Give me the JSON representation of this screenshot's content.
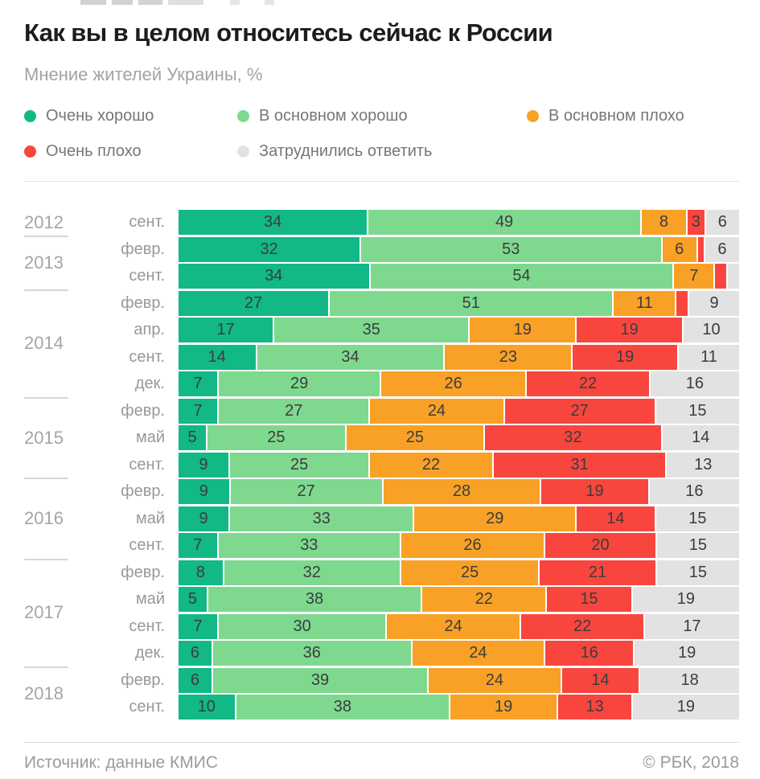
{
  "header": {
    "title": "Как вы в целом относитесь сейчас к России",
    "subtitle": "Мнение жителей Украины, %"
  },
  "legend": [
    {
      "label": "Очень хорошо",
      "color": "#12b886"
    },
    {
      "label": "В основном хорошо",
      "color": "#7ed98f"
    },
    {
      "label": "В основном плохо",
      "color": "#f9a126"
    },
    {
      "label": "Очень плохо",
      "color": "#f8463e"
    },
    {
      "label": "Затруднились ответить",
      "color": "#e2e2e2"
    }
  ],
  "chart_data": {
    "type": "bar",
    "stacked": true,
    "orientation": "horizontal",
    "title": "Как вы в целом относитесь сейчас к России",
    "subtitle": "Мнение жителей Украины, %",
    "unit": "%",
    "series_names": [
      "Очень хорошо",
      "В основном хорошо",
      "В основном плохо",
      "Очень плохо",
      "Затруднились ответить"
    ],
    "colors": [
      "#12b886",
      "#7ed98f",
      "#f9a126",
      "#f8463e",
      "#e2e2e2"
    ],
    "label_min_value": 3,
    "legend_position": "top",
    "groups": [
      {
        "year": "2012",
        "rows": [
          {
            "month": "сент.",
            "values": [
              34,
              49,
              8,
              3,
              6
            ]
          }
        ]
      },
      {
        "year": "2013",
        "rows": [
          {
            "month": "февр.",
            "values": [
              32,
              53,
              6,
              1,
              6
            ]
          },
          {
            "month": "сент.",
            "values": [
              34,
              54,
              7,
              2,
              2
            ]
          }
        ]
      },
      {
        "year": "2014",
        "rows": [
          {
            "month": "февр.",
            "values": [
              27,
              51,
              11,
              2,
              9
            ]
          },
          {
            "month": "апр.",
            "values": [
              17,
              35,
              19,
              19,
              10
            ]
          },
          {
            "month": "сент.",
            "values": [
              14,
              34,
              23,
              19,
              11
            ]
          },
          {
            "month": "дек.",
            "values": [
              7,
              29,
              26,
              22,
              16
            ]
          }
        ]
      },
      {
        "year": "2015",
        "rows": [
          {
            "month": "февр.",
            "values": [
              7,
              27,
              24,
              27,
              15
            ]
          },
          {
            "month": "май",
            "values": [
              5,
              25,
              25,
              32,
              14
            ]
          },
          {
            "month": "сент.",
            "values": [
              9,
              25,
              22,
              31,
              13
            ]
          }
        ]
      },
      {
        "year": "2016",
        "rows": [
          {
            "month": "февр.",
            "values": [
              9,
              27,
              28,
              19,
              16
            ]
          },
          {
            "month": "май",
            "values": [
              9,
              33,
              29,
              14,
              15
            ]
          },
          {
            "month": "сент.",
            "values": [
              7,
              33,
              26,
              20,
              15
            ]
          }
        ]
      },
      {
        "year": "2017",
        "rows": [
          {
            "month": "февр.",
            "values": [
              8,
              32,
              25,
              21,
              15
            ]
          },
          {
            "month": "май",
            "values": [
              5,
              38,
              22,
              15,
              19
            ]
          },
          {
            "month": "сент.",
            "values": [
              7,
              30,
              24,
              22,
              17
            ]
          },
          {
            "month": "дек.",
            "values": [
              6,
              36,
              24,
              16,
              19
            ]
          }
        ]
      },
      {
        "year": "2018",
        "rows": [
          {
            "month": "февр.",
            "values": [
              6,
              39,
              24,
              14,
              18
            ]
          },
          {
            "month": "сент.",
            "values": [
              10,
              38,
              19,
              13,
              19
            ]
          }
        ]
      }
    ]
  },
  "footer": {
    "source": "Источник: данные КМИС",
    "copyright": "© РБК, 2018"
  }
}
